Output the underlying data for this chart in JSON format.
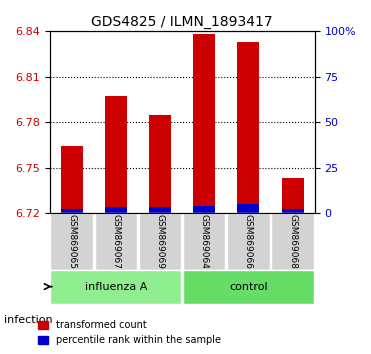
{
  "title": "GDS4825 / ILMN_1893417",
  "samples": [
    "GSM869065",
    "GSM869067",
    "GSM869069",
    "GSM869064",
    "GSM869066",
    "GSM869068"
  ],
  "groups": [
    "influenza A",
    "influenza A",
    "influenza A",
    "control",
    "control",
    "control"
  ],
  "group_labels": [
    "influenza A",
    "control"
  ],
  "group_colors": [
    "#90EE90",
    "#00CC00"
  ],
  "transformed_counts": [
    6.764,
    6.797,
    6.785,
    6.838,
    6.833,
    6.743
  ],
  "percentile_ranks": [
    2,
    3,
    3,
    4,
    5,
    2
  ],
  "y_min": 6.72,
  "y_max": 6.84,
  "y_ticks": [
    6.72,
    6.75,
    6.78,
    6.81,
    6.84
  ],
  "y2_ticks": [
    0,
    25,
    50,
    75,
    100
  ],
  "y2_tick_labels": [
    "0",
    "25",
    "50",
    "75",
    "100%"
  ],
  "bar_color_red": "#CC0000",
  "bar_color_blue": "#0000CC",
  "base_value": 6.72,
  "percentile_scale": 0.12,
  "infection_label": "infection",
  "legend_red": "transformed count",
  "legend_blue": "percentile rank within the sample",
  "group_box_colors": [
    "#C8F0C8",
    "#66EE66"
  ],
  "tick_label_color_left": "#CC0000",
  "tick_label_color_right": "#0000CC",
  "bar_width": 0.5
}
